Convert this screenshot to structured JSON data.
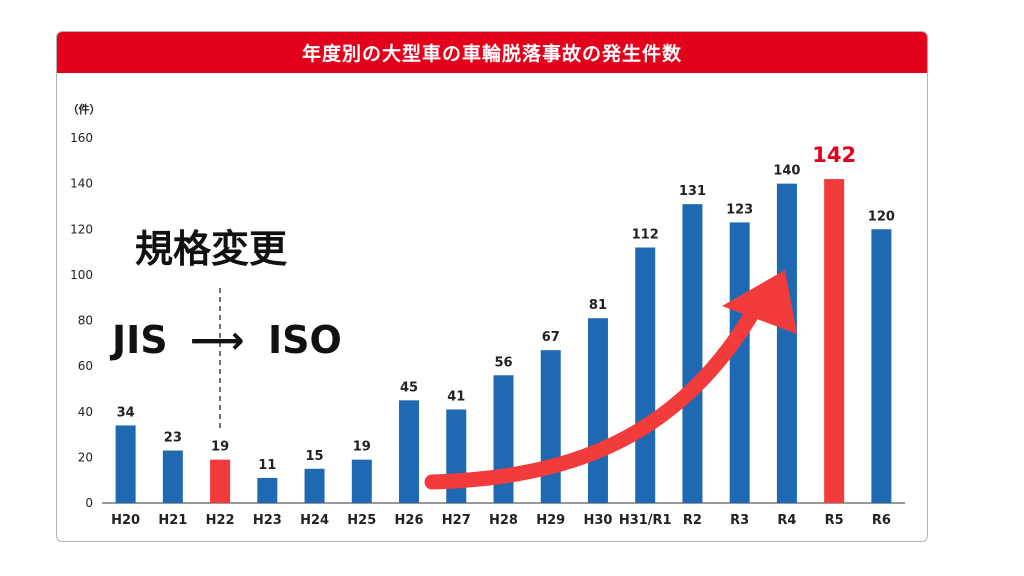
{
  "chart_data": {
    "type": "bar",
    "title": "年度別の大型車の車輪脱落事故の発生件数",
    "unit_label": "（件）",
    "categories": [
      "H20",
      "H21",
      "H22",
      "H23",
      "H24",
      "H25",
      "H26",
      "H27",
      "H28",
      "H29",
      "H30",
      "H31/R1",
      "R2",
      "R3",
      "R4",
      "R5",
      "R6"
    ],
    "values": [
      34,
      23,
      19,
      11,
      15,
      19,
      45,
      41,
      56,
      67,
      81,
      112,
      131,
      123,
      140,
      142,
      120
    ],
    "highlight": [
      "H22",
      "R5"
    ],
    "ylim": [
      0,
      160
    ],
    "yticks": [
      0,
      20,
      40,
      60,
      80,
      100,
      120,
      140,
      160
    ],
    "grid": false,
    "colors": {
      "bar": "#1f69b3",
      "highlight": "#f23b3b",
      "header": "#e3001b",
      "arrow": "#f23b3b",
      "highlight_label": "#e3001b"
    }
  },
  "annotations": {
    "standard_change": "規格変更",
    "from_standard": "JIS",
    "to_standard": "ISO"
  }
}
